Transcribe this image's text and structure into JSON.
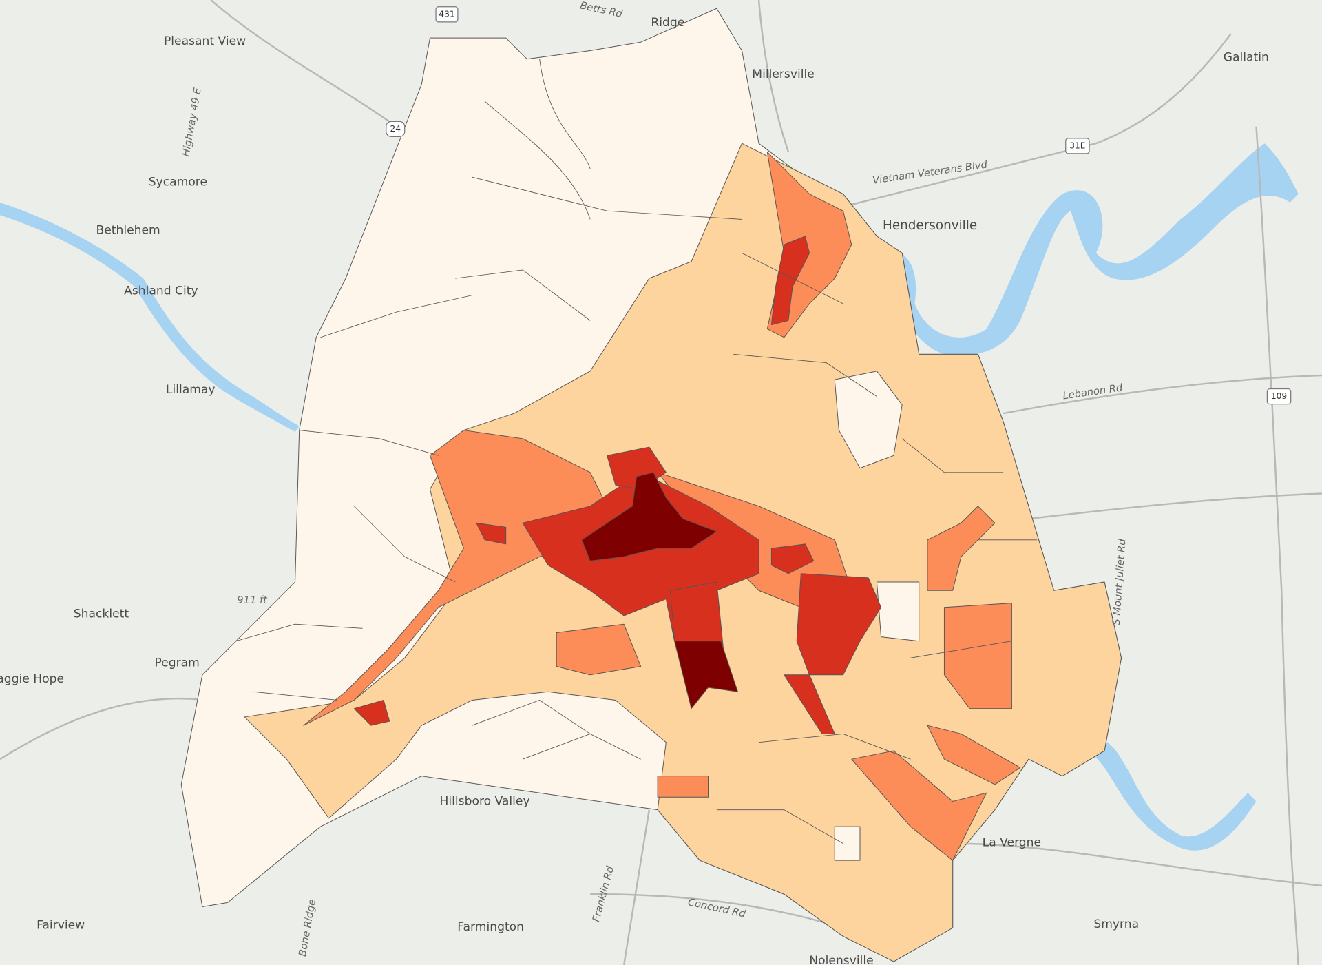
{
  "places": [
    "Pleasant View",
    "Ridge",
    "Millersville",
    "Gallatin",
    "Sycamore",
    "Bethlehem",
    "Ashland City",
    "Lillamay",
    "Shacklett",
    "Pegram",
    "Maggie Hope",
    "Hendersonville",
    "Hillsboro Valley",
    "Fairview",
    "Farmington",
    "La Vergne",
    "Smyrna",
    "Nolensville"
  ],
  "roads": [
    "Betts Rd",
    "Highway 49 E",
    "Vietnam Veterans Blvd",
    "Lebanon Rd",
    "S Mount Juliet Rd",
    "Franklin Rd",
    "Concord Rd",
    "Bone Ridge"
  ],
  "shields": [
    "431",
    "24",
    "31E",
    "109"
  ],
  "elevation": "911 ft"
}
